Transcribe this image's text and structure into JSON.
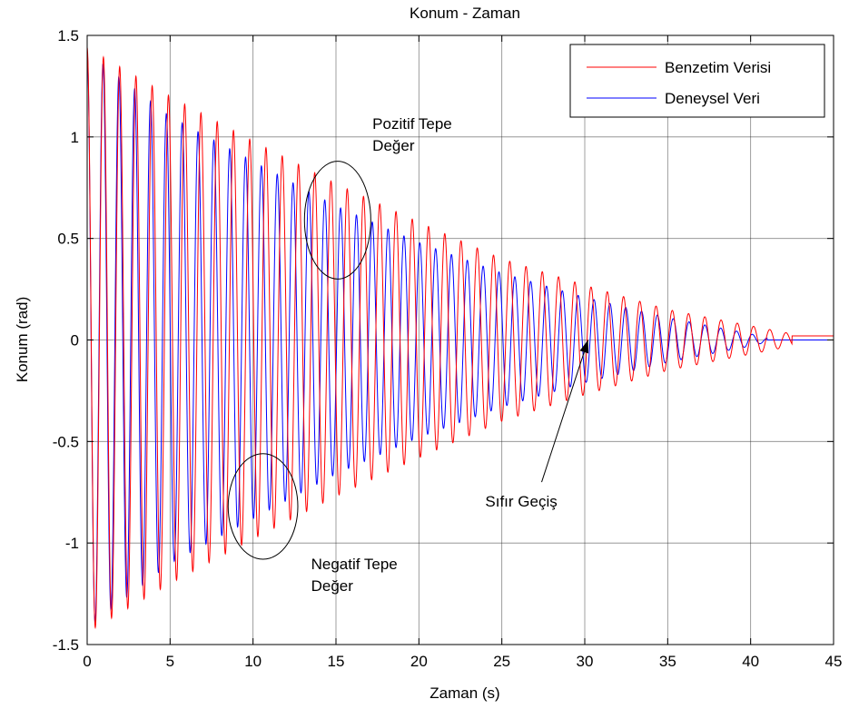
{
  "chart_data": {
    "type": "line",
    "title": "Konum - Zaman",
    "xlabel": "Zaman (s)",
    "ylabel": "Konum (rad)",
    "xlim": [
      0,
      45
    ],
    "ylim": [
      -1.5,
      1.5
    ],
    "xticks": [
      0,
      5,
      10,
      15,
      20,
      25,
      30,
      35,
      40,
      45
    ],
    "yticks": [
      -1.5,
      -1,
      -0.5,
      0,
      0.5,
      1,
      1.5
    ],
    "xtick_labels": [
      "0",
      "5",
      "10",
      "15",
      "20",
      "25",
      "30",
      "35",
      "40",
      "45"
    ],
    "ytick_labels": [
      "-1.5",
      "-1",
      "-0.5",
      "0",
      "0.5",
      "1",
      "1.5"
    ],
    "grid": true,
    "legend_position": "top-right",
    "series": [
      {
        "name": "Benzetim Verisi",
        "color": "#ff0000",
        "initial_amplitude": 1.44,
        "period": 0.98,
        "peak_envelope": [
          [
            0,
            1.44
          ],
          [
            5,
            1.2
          ],
          [
            10,
            0.98
          ],
          [
            15,
            0.77
          ],
          [
            20,
            0.58
          ],
          [
            25,
            0.4
          ],
          [
            30,
            0.27
          ],
          [
            35,
            0.15
          ],
          [
            40,
            0.07
          ],
          [
            42.5,
            0.03
          ]
        ],
        "final_value": 0.02
      },
      {
        "name": "Deneysel Veri",
        "color": "#0000ff",
        "initial_amplitude": 1.42,
        "period": 0.955,
        "peak_envelope": [
          [
            0,
            1.42
          ],
          [
            5,
            1.1
          ],
          [
            10,
            0.88
          ],
          [
            15,
            0.66
          ],
          [
            20,
            0.48
          ],
          [
            25,
            0.33
          ],
          [
            30,
            0.21
          ],
          [
            35,
            0.11
          ],
          [
            40,
            0.03
          ],
          [
            41,
            0.01
          ]
        ],
        "final_value": 0
      }
    ],
    "annotations": [
      {
        "text_lines": [
          "Pozitif Tepe",
          "Değer"
        ],
        "x": 17.2,
        "y": 1.04
      },
      {
        "text_lines": [
          "Negatif Tepe",
          "Değer"
        ],
        "x": 13.5,
        "y": -1.13
      },
      {
        "text_lines": [
          "Sıfır Geçiş"
        ],
        "x": 24,
        "y": -0.82
      }
    ],
    "ellipses": [
      {
        "cx": 15.1,
        "cy": 0.59,
        "rx": 2.0,
        "ry": 0.29
      },
      {
        "cx": 10.6,
        "cy": -0.82,
        "rx": 2.1,
        "ry": 0.26
      }
    ],
    "arrow": {
      "from": [
        27.4,
        -0.7
      ],
      "to": [
        30.2,
        0.0
      ]
    }
  }
}
